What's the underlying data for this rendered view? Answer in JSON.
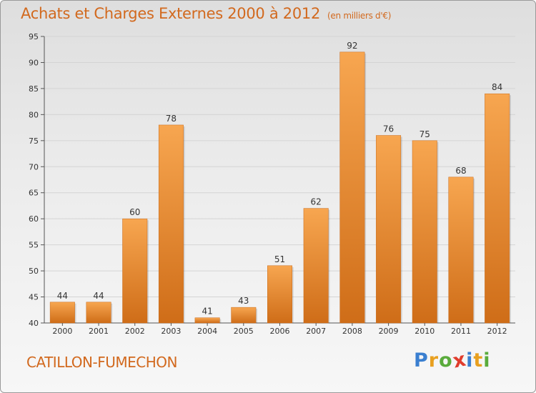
{
  "chart_data": {
    "type": "bar",
    "title": "Achats et Charges Externes 2000 à 2012",
    "subtitle": "(en milliers d'€)",
    "categories": [
      "2000",
      "2001",
      "2002",
      "2003",
      "2004",
      "2005",
      "2006",
      "2007",
      "2008",
      "2009",
      "2010",
      "2011",
      "2012"
    ],
    "values": [
      44,
      44,
      60,
      78,
      41,
      43,
      51,
      62,
      92,
      76,
      75,
      68,
      84
    ],
    "data_labels": [
      "44",
      "44",
      "60",
      "78",
      "41",
      "43",
      "51",
      "62",
      "92",
      "76",
      "75",
      "68",
      "84"
    ],
    "ylim": [
      40,
      95
    ],
    "yticks": [
      40,
      45,
      50,
      55,
      60,
      65,
      70,
      75,
      80,
      85,
      90,
      95
    ],
    "ytick_labels": [
      "40",
      "45",
      "50",
      "55",
      "60",
      "65",
      "70",
      "75",
      "80",
      "85",
      "90",
      "95"
    ],
    "xlabel": "",
    "ylabel": "",
    "grid": true,
    "bar_color_top": "#f7a650",
    "bar_color_bottom": "#cf6d18"
  },
  "footer": {
    "town": "CATILLON-FUMECHON",
    "logo_letters": [
      "P",
      "r",
      "o",
      "x",
      "i",
      "t",
      "i"
    ],
    "logo_colors": [
      "#3a7fd0",
      "#e8a020",
      "#5aab3c",
      "#e03c2c",
      "#3a7fd0",
      "#e8a020",
      "#5aab3c"
    ]
  },
  "colors": {
    "title": "#d2691e",
    "grid": "#d4d4d4"
  }
}
